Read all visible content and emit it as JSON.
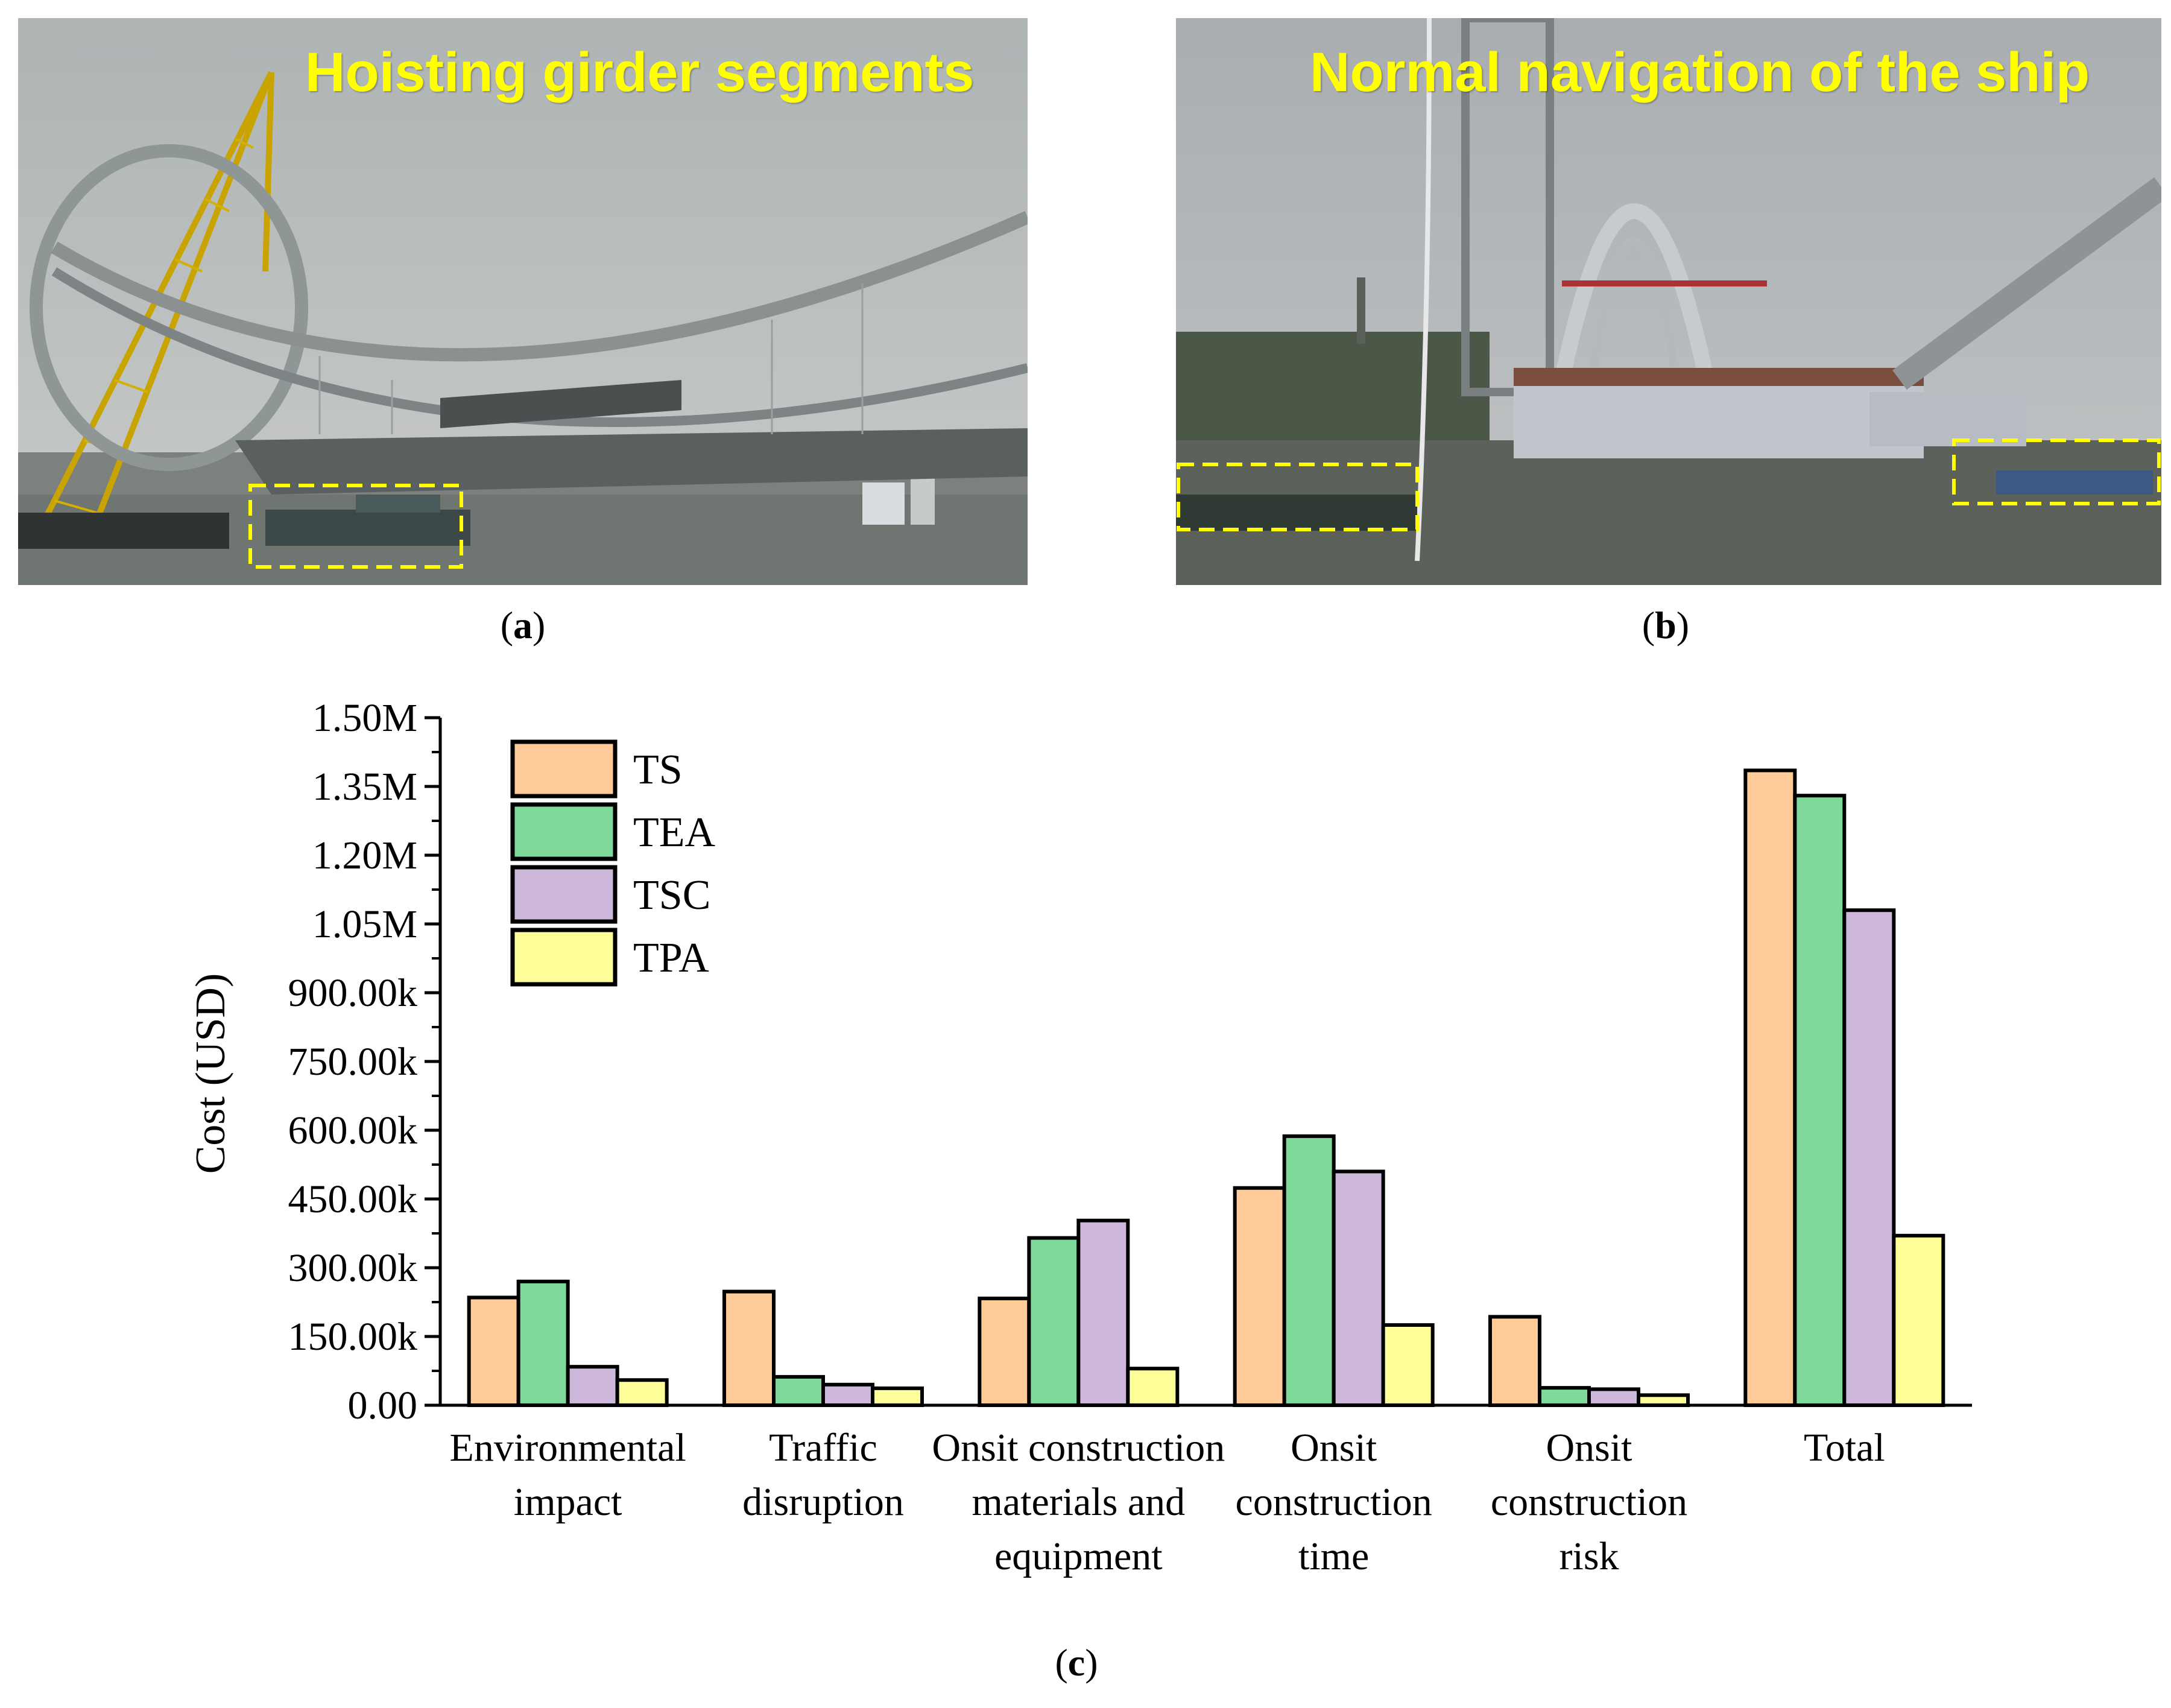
{
  "photos": [
    {
      "id": "a",
      "caption": "Hoisting girder segments",
      "label": "a",
      "colors": {
        "sky": "#b9bdbd",
        "water": "#6e7470",
        "crane": "#d9b300",
        "highlight": "#ffff00"
      }
    },
    {
      "id": "b",
      "caption": "Normal navigation of the ship",
      "label": "b",
      "colors": {
        "sky": "#aeb2b4",
        "water": "#5f625d",
        "arch": "#c9ced3",
        "highlight": "#ffff00"
      }
    }
  ],
  "chart_label": "c",
  "chart_data": {
    "type": "bar",
    "xlabel": "",
    "ylabel": "Cost (USD)",
    "ylim": [
      0,
      1500000
    ],
    "yticks": [
      "0.00",
      "150.00k",
      "300.00k",
      "450.00k",
      "600.00k",
      "750.00k",
      "900.00k",
      "1.05M",
      "1.20M",
      "1.35M",
      "1.50M"
    ],
    "categories": [
      [
        "Environmental",
        "impact"
      ],
      [
        "Traffic",
        "disruption"
      ],
      [
        "Onsit construction",
        "materials and",
        "equipment"
      ],
      [
        "Onsit",
        "construction",
        "time"
      ],
      [
        "Onsit",
        "construction",
        "risk"
      ],
      [
        "Total"
      ]
    ],
    "series": [
      {
        "name": "TS",
        "color": "#ffcc99",
        "values": [
          235000,
          248000,
          233000,
          474000,
          193000,
          1385000
        ]
      },
      {
        "name": "TEA",
        "color": "#7fd99a",
        "values": [
          270000,
          62000,
          365000,
          587000,
          38000,
          1330000
        ]
      },
      {
        "name": "TSC",
        "color": "#cdb8dc",
        "values": [
          84000,
          45000,
          403000,
          510000,
          35000,
          1080000
        ]
      },
      {
        "name": "TPA",
        "color": "#ffff99",
        "values": [
          55000,
          37000,
          80000,
          175000,
          22000,
          370000
        ]
      }
    ],
    "legend_position": "top-left",
    "grid": false
  }
}
